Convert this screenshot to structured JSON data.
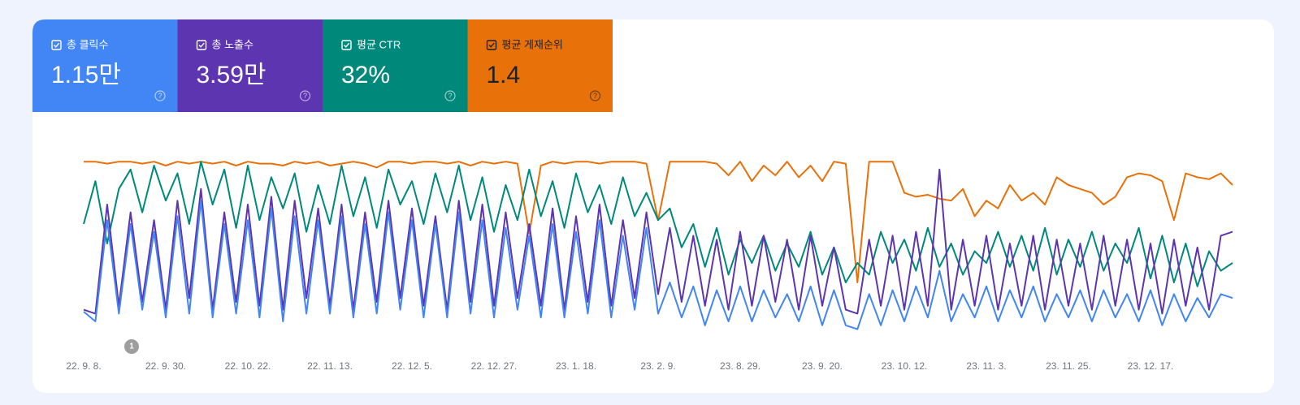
{
  "metrics": [
    {
      "label": "총 클릭수",
      "value": "1.15만",
      "color": "#4285f4"
    },
    {
      "label": "총 노출수",
      "value": "3.59만",
      "color": "#5e35b1"
    },
    {
      "label": "평균 CTR",
      "value": "32%",
      "color": "#00897b"
    },
    {
      "label": "평균 게재순위",
      "value": "1.4",
      "color": "#e8710a"
    }
  ],
  "chart_data": {
    "type": "line",
    "annotation": "1",
    "categories": [
      "22. 9. 8.",
      null,
      null,
      null,
      null,
      null,
      null,
      "22. 9. 30.",
      null,
      null,
      null,
      null,
      null,
      null,
      "22. 10. 22.",
      null,
      null,
      null,
      null,
      null,
      null,
      "22. 11. 13.",
      null,
      null,
      null,
      null,
      null,
      null,
      "22. 12. 5.",
      null,
      null,
      null,
      null,
      null,
      null,
      "22. 12. 27.",
      null,
      null,
      null,
      null,
      null,
      null,
      "23. 1. 18.",
      null,
      null,
      null,
      null,
      null,
      null,
      "23. 2. 9.",
      null,
      null,
      null,
      null,
      null,
      null,
      "23. 8. 29.",
      null,
      null,
      null,
      null,
      null,
      null,
      "23. 9. 20.",
      null,
      null,
      null,
      null,
      null,
      null,
      "23. 10. 12.",
      null,
      null,
      null,
      null,
      null,
      null,
      "23. 11. 3.",
      null,
      null,
      null,
      null,
      null,
      null,
      "23. 11. 25.",
      null,
      null,
      null,
      null,
      null,
      null,
      "23. 12. 17.",
      null,
      null,
      null,
      null,
      null,
      null,
      null
    ],
    "ylim": [
      0,
      100
    ],
    "series": [
      {
        "color": "#e8710a",
        "values": [
          92,
          92,
          91,
          92,
          92,
          91,
          92,
          90,
          92,
          91,
          92,
          91,
          92,
          90,
          92,
          91,
          91,
          90,
          92,
          91,
          92,
          90,
          91,
          92,
          91,
          89,
          92,
          92,
          91,
          92,
          92,
          91,
          92,
          90,
          92,
          91,
          92,
          91,
          55,
          90,
          92,
          91,
          92,
          92,
          91,
          92,
          92,
          92,
          91,
          62,
          92,
          92,
          92,
          92,
          91,
          85,
          92,
          82,
          90,
          85,
          92,
          84,
          90,
          82,
          92,
          91,
          30,
          92,
          92,
          92,
          76,
          74,
          75,
          73,
          72,
          78,
          64,
          72,
          68,
          80,
          72,
          76,
          70,
          84,
          80,
          78,
          76,
          70,
          74,
          84,
          86,
          85,
          82,
          62,
          86,
          84,
          83,
          86,
          80
        ]
      },
      {
        "color": "#00897b",
        "values": [
          60,
          82,
          50,
          78,
          88,
          66,
          90,
          72,
          86,
          60,
          92,
          70,
          88,
          58,
          90,
          62,
          84,
          68,
          86,
          56,
          80,
          60,
          90,
          64,
          84,
          58,
          88,
          70,
          82,
          60,
          86,
          66,
          90,
          62,
          84,
          56,
          80,
          62,
          88,
          64,
          82,
          58,
          86,
          66,
          80,
          60,
          84,
          64,
          76,
          62,
          68,
          48,
          60,
          38,
          58,
          34,
          52,
          40,
          54,
          36,
          50,
          38,
          56,
          34,
          48,
          30,
          40,
          34,
          56,
          40,
          52,
          36,
          58,
          38,
          50,
          34,
          46,
          40,
          56,
          38,
          54,
          36,
          58,
          34,
          52,
          38,
          56,
          36,
          50,
          40,
          58,
          32,
          54,
          30,
          50,
          28,
          46,
          36,
          40
        ]
      },
      {
        "color": "#5e35b1",
        "values": [
          16,
          14,
          70,
          18,
          66,
          20,
          62,
          16,
          72,
          22,
          78,
          16,
          66,
          20,
          70,
          18,
          74,
          16,
          72,
          22,
          68,
          18,
          70,
          16,
          66,
          20,
          72,
          22,
          68,
          18,
          64,
          16,
          72,
          20,
          70,
          18,
          66,
          22,
          60,
          18,
          68,
          16,
          64,
          20,
          70,
          18,
          62,
          22,
          66,
          24,
          58,
          20,
          54,
          18,
          52,
          16,
          56,
          18,
          54,
          20,
          52,
          16,
          54,
          18,
          48,
          16,
          14,
          52,
          18,
          54,
          16,
          56,
          18,
          88,
          16,
          52,
          18,
          54,
          16,
          50,
          18,
          54,
          16,
          52,
          18,
          50,
          16,
          54,
          18,
          52,
          16,
          50,
          14,
          52,
          18,
          48,
          16,
          54,
          56
        ]
      },
      {
        "color": "#4285f4",
        "values": [
          15,
          10,
          62,
          14,
          60,
          16,
          56,
          12,
          64,
          14,
          72,
          12,
          60,
          14,
          62,
          12,
          68,
          10,
          64,
          14,
          62,
          14,
          64,
          12,
          60,
          14,
          66,
          16,
          62,
          12,
          60,
          12,
          66,
          14,
          62,
          12,
          58,
          16,
          54,
          12,
          60,
          12,
          56,
          14,
          62,
          12,
          54,
          16,
          58,
          14,
          30,
          12,
          28,
          8,
          26,
          10,
          28,
          10,
          26,
          12,
          24,
          10,
          28,
          8,
          26,
          8,
          6,
          24,
          8,
          26,
          10,
          28,
          12,
          36,
          10,
          24,
          12,
          28,
          10,
          26,
          12,
          28,
          10,
          24,
          12,
          26,
          10,
          26,
          12,
          24,
          10,
          26,
          8,
          24,
          10,
          22,
          12,
          24,
          22
        ]
      }
    ]
  }
}
